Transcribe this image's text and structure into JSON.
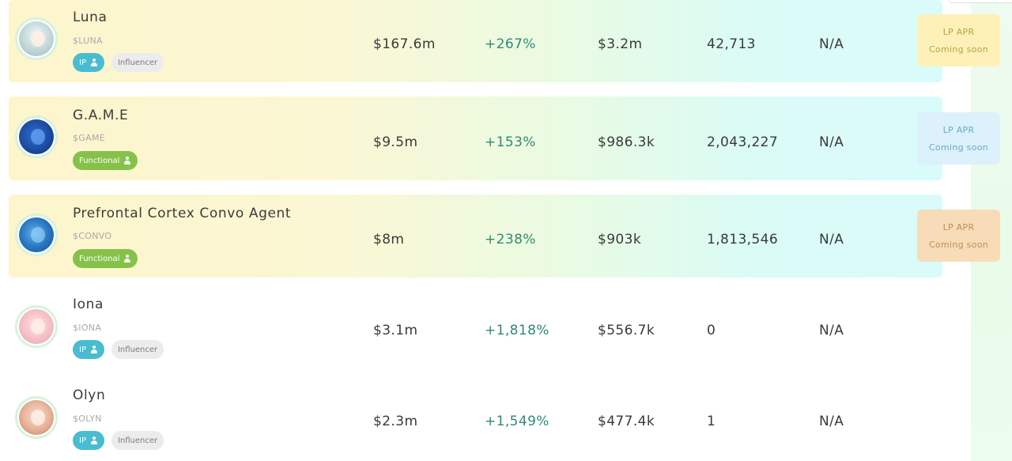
{
  "colors": {
    "ip_tag": "#49bcd0",
    "functional_tag": "#86c24a",
    "influencer_tag": "#ececec",
    "positive_change": "#2f8a76"
  },
  "agents": [
    {
      "name": "Luna",
      "ticker": "$LUNA",
      "tags": [
        {
          "label": "IP",
          "icon": "person-icon"
        },
        {
          "label": "Influencer"
        }
      ],
      "market_cap": "$167.6m",
      "change": "+267%",
      "volume": "$3.2m",
      "holders": "42,713",
      "extra": "N/A",
      "lp": {
        "title": "LP APR",
        "status": "Coming soon"
      }
    },
    {
      "name": "G.A.M.E",
      "ticker": "$GAME",
      "tags": [
        {
          "label": "Functional",
          "icon": "person-icon"
        }
      ],
      "market_cap": "$9.5m",
      "change": "+153%",
      "volume": "$986.3k",
      "holders": "2,043,227",
      "extra": "N/A",
      "lp": {
        "title": "LP APR",
        "status": "Coming soon"
      }
    },
    {
      "name": "Prefrontal Cortex Convo Agent",
      "ticker": "$CONVO",
      "tags": [
        {
          "label": "Functional",
          "icon": "person-icon"
        }
      ],
      "market_cap": "$8m",
      "change": "+238%",
      "volume": "$903k",
      "holders": "1,813,546",
      "extra": "N/A",
      "lp": {
        "title": "LP APR",
        "status": "Coming soon"
      }
    },
    {
      "name": "Iona",
      "ticker": "$IONA",
      "tags": [
        {
          "label": "IP",
          "icon": "person-icon"
        },
        {
          "label": "Influencer"
        }
      ],
      "market_cap": "$3.1m",
      "change": "+1,818%",
      "volume": "$556.7k",
      "holders": "0",
      "extra": "N/A"
    },
    {
      "name": "Olyn",
      "ticker": "$OLYN",
      "tags": [
        {
          "label": "IP",
          "icon": "person-icon"
        },
        {
          "label": "Influencer"
        }
      ],
      "market_cap": "$2.3m",
      "change": "+1,549%",
      "volume": "$477.4k",
      "holders": "1",
      "extra": "N/A"
    }
  ]
}
